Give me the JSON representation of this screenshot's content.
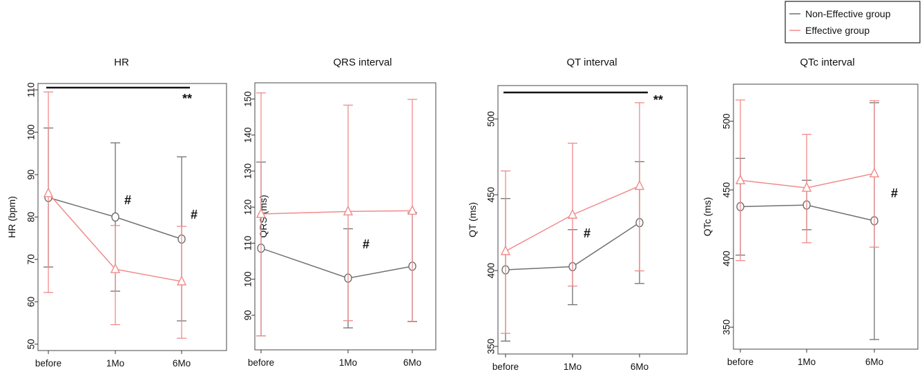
{
  "legend": {
    "entries": [
      {
        "label": "Non-Effective group",
        "color": "#707070"
      },
      {
        "label": "Effective group",
        "color": "#f08a8a"
      }
    ],
    "placement": "top-right"
  },
  "chart_data": [
    {
      "type": "line",
      "title": "HR",
      "ylabel": "HR (bpm)",
      "categories": [
        "before",
        "1Mo",
        "6Mo"
      ],
      "yticks": [
        50,
        60,
        70,
        80,
        90,
        100,
        110
      ],
      "ylim": [
        48.5,
        111.5
      ],
      "series": [
        {
          "name": "Non-Effective group",
          "color": "#707070",
          "marker": "circle",
          "values": [
            84.6,
            80.0,
            74.8
          ],
          "err_low": [
            68.2,
            62.5,
            55.5
          ],
          "err_high": [
            101.0,
            97.5,
            94.2
          ]
        },
        {
          "name": "Effective group",
          "color": "#f08a8a",
          "marker": "triangle",
          "values": [
            85.6,
            67.7,
            64.8
          ],
          "err_low": [
            62.2,
            54.6,
            51.4
          ],
          "err_high": [
            109.5,
            78.0,
            77.8
          ]
        }
      ],
      "significance_bar": {
        "from": "before",
        "to": "6Mo",
        "label": "**"
      },
      "annotations": [
        {
          "label": "#",
          "at": "1Mo"
        },
        {
          "label": "#",
          "at": "6Mo"
        }
      ]
    },
    {
      "type": "line",
      "title": "QRS interval",
      "ylabel": "QRS (ms)",
      "categories": [
        "before",
        "1Mo",
        "6Mo"
      ],
      "yticks": [
        90,
        100,
        110,
        120,
        130,
        140,
        150
      ],
      "ylim": [
        80.4,
        154.5
      ],
      "series": [
        {
          "name": "Non-Effective group",
          "color": "#707070",
          "marker": "circle",
          "values": [
            108.6,
            100.3,
            103.6
          ],
          "err_low": null,
          "err_high": null
        },
        {
          "name": "Effective group",
          "color": "#f08a8a",
          "marker": "triangle",
          "values": [
            118.1,
            118.8,
            119.0
          ],
          "err_low": [
            84.3,
            88.5,
            88.2
          ],
          "err_high": [
            151.7,
            148.3,
            149.9
          ]
        }
      ],
      "extra_error_bars": [
        {
          "color": "#707070",
          "x": "before",
          "low": 84.3,
          "high": 132.5
        },
        {
          "color": "#707070",
          "x": "1Mo",
          "low": 86.5,
          "high": 114.0
        },
        {
          "color": "#707070",
          "x": "6Mo",
          "low": 88.3,
          "high": 118.5
        }
      ],
      "annotations": [
        {
          "label": "#",
          "at": "1Mo"
        }
      ]
    },
    {
      "type": "line",
      "title": "QT interval",
      "ylabel": "QT (ms)",
      "categories": [
        "before",
        "1Mo",
        "6Mo"
      ],
      "yticks": [
        350,
        400,
        450,
        500
      ],
      "ylim": [
        345,
        522
      ],
      "series": [
        {
          "name": "Non-Effective group",
          "color": "#707070",
          "marker": "circle",
          "values": [
            400.5,
            402.6,
            431.6
          ],
          "err_low": [
            353.5,
            377.5,
            391.5
          ],
          "err_high": [
            447.5,
            427.0,
            471.8
          ]
        },
        {
          "name": "Effective group",
          "color": "#f08a8a",
          "marker": "triangle",
          "values": [
            412.8,
            436.8,
            455.8
          ],
          "err_low": [
            358.6,
            389.8,
            399.8
          ],
          "err_high": [
            465.7,
            484.0,
            510.7
          ]
        }
      ],
      "significance_bar": {
        "from": "before",
        "to": "6Mo",
        "label": "**"
      },
      "annotations": [
        {
          "label": "#",
          "at": "1Mo"
        }
      ]
    },
    {
      "type": "line",
      "title": "QTc interval",
      "ylabel": "QTc (ms)",
      "categories": [
        "before",
        "1Mo",
        "6Mo"
      ],
      "yticks": [
        350,
        400,
        450,
        500
      ],
      "ylim": [
        334,
        527
      ],
      "series": [
        {
          "name": "Non-Effective group",
          "color": "#707070",
          "marker": "circle",
          "values": [
            437.8,
            439.0,
            427.5
          ],
          "err_low": [
            402.5,
            421.0,
            341.0
          ],
          "err_high": [
            473.0,
            457.0,
            513.5
          ]
        },
        {
          "name": "Effective group",
          "color": "#f08a8a",
          "marker": "triangle",
          "values": [
            457.0,
            451.5,
            462.0
          ],
          "err_low": [
            398.5,
            411.5,
            408.3
          ],
          "err_high": [
            515.5,
            490.5,
            515.0
          ]
        }
      ],
      "annotations": [
        {
          "label": "#",
          "at": "6Mo"
        }
      ]
    }
  ]
}
